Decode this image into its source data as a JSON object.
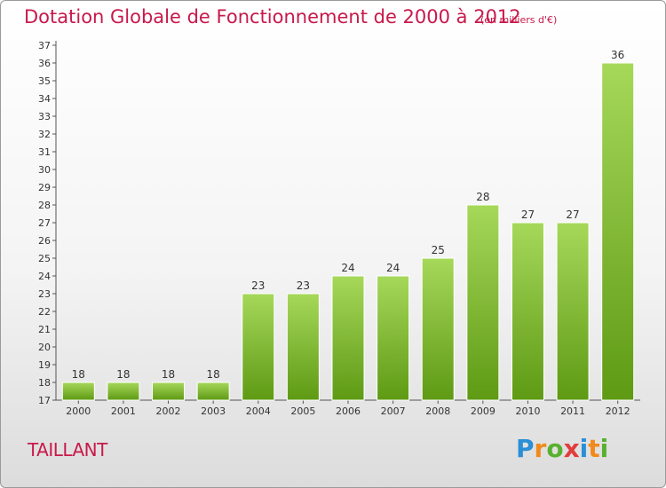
{
  "title": "Dotation Globale de Fonctionnement de 2000 à 2012",
  "subtitle": "(en milliers d'€)",
  "commune": "TAILLANT",
  "logo": {
    "text": "Proxiti",
    "colors": [
      "#2a8fd6",
      "#f08a1c",
      "#58b030",
      "#e23c3c",
      "#2a8fd6",
      "#f08a1c",
      "#58b030"
    ]
  },
  "colors": {
    "title": "#c8194a",
    "bar_top": "#a6d85a",
    "bar_bottom": "#5e9a14",
    "axis": "#555555",
    "grid": "#cccccc"
  },
  "chart_data": {
    "type": "bar",
    "categories": [
      "2000",
      "2001",
      "2002",
      "2003",
      "2004",
      "2005",
      "2006",
      "2007",
      "2008",
      "2009",
      "2010",
      "2011",
      "2012"
    ],
    "values": [
      18,
      18,
      18,
      18,
      23,
      23,
      24,
      24,
      25,
      28,
      27,
      27,
      36
    ],
    "ylim": [
      17,
      37
    ],
    "yticks": [
      17,
      18,
      19,
      20,
      21,
      22,
      23,
      24,
      25,
      26,
      27,
      28,
      29,
      30,
      31,
      32,
      33,
      34,
      35,
      36,
      37
    ],
    "grid": false
  }
}
